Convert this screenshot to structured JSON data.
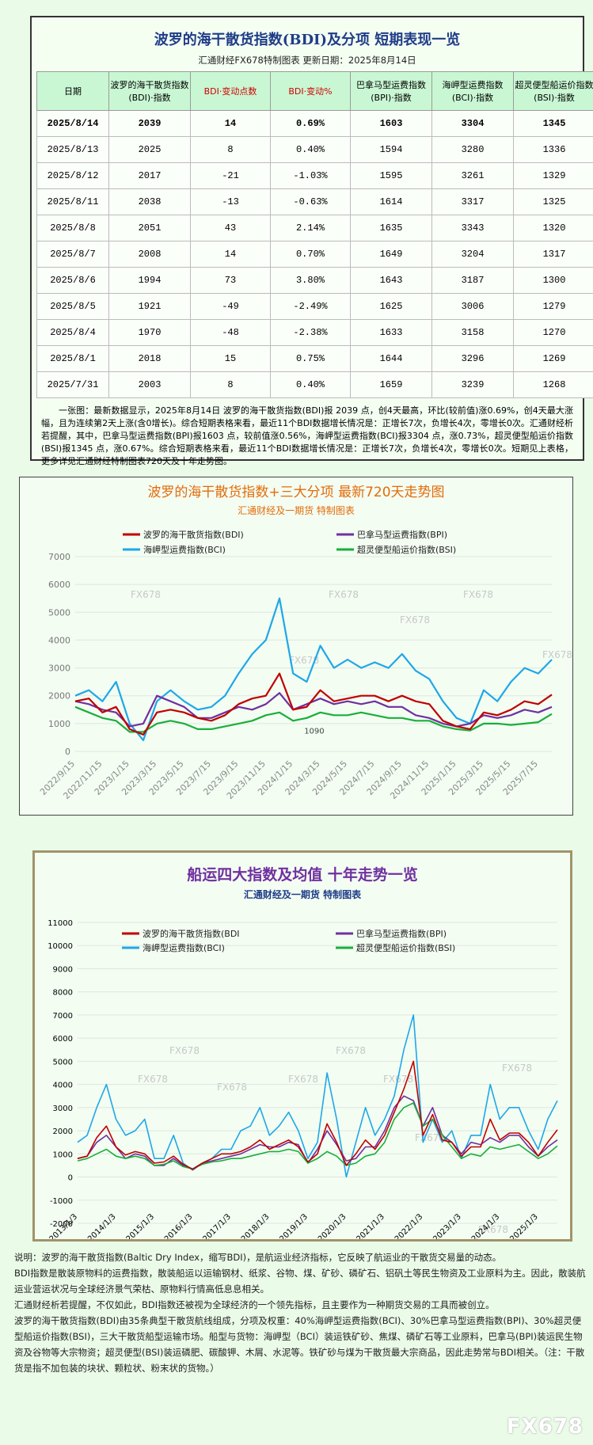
{
  "header": {
    "title": "波罗的海干散货指数(BDI)及分项  短期表现一览",
    "subtitle": "汇通财经FX678特制图表      更新日期：2025年8月14日"
  },
  "table": {
    "columns": [
      "日期",
      "波罗的海干散货指数(BDI)·指数",
      "BDI·变动点数",
      "BDI·变动%",
      "巴拿马型运费指数(BPI)·指数",
      "海岬型运费指数(BCI)·指数",
      "超灵便型船运价指数(BSI)·指数"
    ],
    "rows": [
      [
        "2025/8/14",
        2039,
        14,
        "0.69%",
        1603,
        3304,
        1345
      ],
      [
        "2025/8/13",
        2025,
        8,
        "0.40%",
        1594,
        3280,
        1336
      ],
      [
        "2025/8/12",
        2017,
        -21,
        "-1.03%",
        1595,
        3261,
        1329
      ],
      [
        "2025/8/11",
        2038,
        -13,
        "-0.63%",
        1614,
        3317,
        1325
      ],
      [
        "2025/8/8",
        2051,
        43,
        "2.14%",
        1635,
        3343,
        1320
      ],
      [
        "2025/8/7",
        2008,
        14,
        "0.70%",
        1649,
        3204,
        1317
      ],
      [
        "2025/8/6",
        1994,
        73,
        "3.80%",
        1643,
        3187,
        1300
      ],
      [
        "2025/8/5",
        1921,
        -49,
        "-2.49%",
        1625,
        3006,
        1279
      ],
      [
        "2025/8/4",
        1970,
        -48,
        "-2.38%",
        1633,
        3158,
        1270
      ],
      [
        "2025/8/1",
        2018,
        15,
        "0.75%",
        1644,
        3296,
        1269
      ],
      [
        "2025/7/31",
        2003,
        8,
        "0.40%",
        1659,
        3239,
        1268
      ]
    ]
  },
  "summary": "一张图：最新数据显示，2025年8月14日 波罗的海干散货指数(BDI)报 2039 点，创4天最高，环比(较前值)涨0.69%，创4天最大涨幅，且为连续第2天上涨(含0增长)。综合短期表格来看，最近11个BDI数据增长情况是：正增长7次，负增长4次，零增长0次。汇通财经析若提醒，其中，巴拿马型运费指数(BPI)报1603 点，较前值涨0.56%，海岬型运费指数(BCI)报3304 点，涨0.73%，超灵便型船运价指数(BSI)报1345 点，涨0.67%。综合短期表格来看，最近11个BDI数据增长情况是：正增长7次，负增长4次，零增长0次。短期见上表格，更多详见汇通财经特制图表720天及十年走势图。",
  "chart_data": [
    {
      "type": "line",
      "title": "波罗的海干散货指数+三大分项  最新720天走势图",
      "subtitle": "汇通财经及一期货  特制图表",
      "watermark": "FX678",
      "annotation": "1090",
      "grid": true,
      "ylim": [
        0,
        7000
      ],
      "yticks": [
        0,
        1000,
        2000,
        3000,
        4000,
        5000,
        6000,
        7000
      ],
      "categories": [
        "2022/9/15",
        null,
        "2022/11/15",
        null,
        "2023/1/15",
        null,
        "2023/3/15",
        null,
        "2023/5/15",
        null,
        "2023/7/15",
        null,
        "2023/9/15",
        null,
        "2023/11/15",
        null,
        "2024/1/15",
        null,
        "2024/3/15",
        null,
        "2024/5/15",
        null,
        "2024/7/15",
        null,
        "2024/9/15",
        null,
        "2024/11/15",
        null,
        "2025/1/15",
        null,
        "2025/3/15",
        null,
        "2025/5/15",
        null,
        "2025/7/15",
        null
      ],
      "series": [
        {
          "name": "波罗的海干散货指数(BDI)",
          "color": "#c00000",
          "values": [
            1800,
            1900,
            1400,
            1600,
            800,
            600,
            1400,
            1500,
            1400,
            1200,
            1100,
            1300,
            1700,
            1900,
            2000,
            2800,
            1500,
            1600,
            2200,
            1800,
            1900,
            2000,
            2000,
            1800,
            2000,
            1800,
            1700,
            1100,
            900,
            800,
            1400,
            1300,
            1500,
            1800,
            1700,
            2040
          ]
        },
        {
          "name": "巴拿马型运费指数(BPI)",
          "color": "#7030a0",
          "values": [
            1800,
            1700,
            1500,
            1400,
            900,
            1000,
            2000,
            1800,
            1600,
            1200,
            1200,
            1400,
            1600,
            1500,
            1700,
            2100,
            1500,
            1700,
            1900,
            1700,
            1800,
            1700,
            1800,
            1600,
            1600,
            1300,
            1200,
            1000,
            900,
            1000,
            1300,
            1200,
            1300,
            1500,
            1400,
            1600
          ]
        },
        {
          "name": "海岬型运费指数(BCI)",
          "color": "#1ea7e8",
          "values": [
            2000,
            2200,
            1800,
            2500,
            1000,
            400,
            1800,
            2200,
            1800,
            1500,
            1600,
            2000,
            2800,
            3500,
            4000,
            5500,
            2800,
            2500,
            3800,
            3000,
            3300,
            3000,
            3200,
            3000,
            3500,
            2900,
            2600,
            1800,
            1200,
            1000,
            2200,
            1800,
            2500,
            3000,
            2800,
            3300
          ]
        },
        {
          "name": "超灵便型船运价指数(BSI)",
          "color": "#1aae3c",
          "values": [
            1600,
            1400,
            1200,
            1100,
            700,
            700,
            1000,
            1100,
            1000,
            800,
            800,
            900,
            1000,
            1100,
            1300,
            1400,
            1100,
            1200,
            1400,
            1300,
            1300,
            1400,
            1300,
            1200,
            1200,
            1100,
            1100,
            900,
            800,
            750,
            1000,
            1000,
            950,
            1000,
            1050,
            1345
          ]
        }
      ]
    },
    {
      "type": "line",
      "title": "船运四大指数及均值 十年走势一览",
      "subtitle": "汇通财经及一期货 特制图表",
      "watermark": "FX678",
      "grid": true,
      "ylim": [
        -2000,
        11000
      ],
      "yticks": [
        -2000,
        -1000,
        0,
        1000,
        2000,
        3000,
        4000,
        5000,
        6000,
        7000,
        8000,
        9000,
        10000,
        11000
      ],
      "categories": [
        "2013/1/3",
        null,
        null,
        null,
        "2014/1/3",
        null,
        null,
        null,
        "2015/1/3",
        null,
        null,
        null,
        "2016/1/3",
        null,
        null,
        null,
        "2017/1/3",
        null,
        null,
        null,
        "2018/1/3",
        null,
        null,
        null,
        "2019/1/3",
        null,
        null,
        null,
        "2020/1/3",
        null,
        null,
        null,
        "2021/1/3",
        null,
        null,
        null,
        "2022/1/3",
        null,
        null,
        null,
        "2023/1/3",
        null,
        null,
        null,
        "2024/1/3",
        null,
        null,
        null,
        "2025/1/3",
        null,
        null
      ],
      "series": [
        {
          "name": "波罗的海干散货指数(BDI",
          "color": "#c00000",
          "values": [
            800,
            900,
            1700,
            2200,
            1300,
            950,
            1100,
            1000,
            600,
            650,
            900,
            550,
            330,
            600,
            800,
            1000,
            1000,
            1100,
            1300,
            1600,
            1200,
            1400,
            1600,
            1300,
            650,
            1000,
            2300,
            1500,
            500,
            1000,
            1600,
            1200,
            1800,
            2800,
            3800,
            5000,
            1800,
            2700,
            1600,
            1500,
            900,
            1300,
            1300,
            2500,
            1600,
            1900,
            1900,
            1500,
            900,
            1500,
            2040
          ]
        },
        {
          "name": "巴拿马型运费指数(BPI)",
          "color": "#7030a0",
          "values": [
            800,
            900,
            1500,
            1800,
            1300,
            800,
            1000,
            900,
            500,
            500,
            800,
            500,
            350,
            600,
            700,
            800,
            900,
            1000,
            1200,
            1400,
            1300,
            1300,
            1500,
            1400,
            600,
            1200,
            2000,
            1400,
            700,
            800,
            1300,
            1300,
            2000,
            3000,
            3500,
            3300,
            2200,
            3000,
            1800,
            1500,
            1000,
            1500,
            1400,
            1700,
            1500,
            1800,
            1800,
            1300,
            900,
            1300,
            1603
          ]
        },
        {
          "name": "海岬型运费指数(BCI)",
          "color": "#1ea7e8",
          "values": [
            1500,
            1800,
            3000,
            4000,
            2500,
            1800,
            2000,
            2500,
            800,
            800,
            1800,
            600,
            300,
            600,
            800,
            1200,
            1200,
            2000,
            2200,
            3000,
            1800,
            2200,
            2800,
            2000,
            800,
            1500,
            4500,
            2500,
            0,
            1500,
            3000,
            1800,
            2500,
            3500,
            5500,
            7000,
            1500,
            2500,
            1500,
            2000,
            800,
            1800,
            1800,
            4000,
            2500,
            3000,
            3000,
            2000,
            1200,
            2500,
            3300
          ]
        },
        {
          "name": "超灵便型船运价指数(BSI)",
          "color": "#1aae3c",
          "values": [
            700,
            800,
            1000,
            1200,
            900,
            800,
            900,
            800,
            500,
            550,
            700,
            450,
            350,
            550,
            650,
            700,
            800,
            800,
            900,
            1000,
            1100,
            1100,
            1200,
            1100,
            600,
            800,
            1100,
            900,
            500,
            600,
            900,
            1000,
            1500,
            2500,
            3000,
            3200,
            2200,
            2500,
            1800,
            1300,
            800,
            1000,
            900,
            1300,
            1200,
            1300,
            1400,
            1100,
            800,
            1000,
            1345
          ]
        }
      ]
    }
  ],
  "notes": [
    "说明：波罗的海干散货指数(Baltic Dry Index，缩写BDI)，是航运业经济指标，它反映了航运业的干散货交易量的动态。",
    "BDI指数是散装原物料的运费指数，散装船运以运输钢材、纸浆、谷物、煤、矿砂、磷矿石、铝矾土等民生物资及工业原料为主。因此，散装航运业营运状况与全球经济景气荣枯、原物料行情高低息息相关。",
    "汇通财经析若提醒，不仅如此，BDI指数还被视为全球经济的一个领先指标，且主要作为一种期货交易的工具而被创立。",
    "波罗的海干散货指数(BDI)由35条典型干散货航线组成，分项及权重：40%海岬型运费指数(BCI)、30%巴拿马型运费指数(BPI)、30%超灵便型船运价指数(BSI)，三大干散货船型运输市场。船型与货物：海岬型（BCI）装运铁矿砂、焦煤、磷矿石等工业原料，巴拿马(BPI)装运民生物资及谷物等大宗物资；超灵便型(BSI)装运磷肥、碳酸钾、木屑、水泥等。铁矿砂与煤为干散货最大宗商品，因此走势常与BDI相关。（注：干散货是指不加包装的块状、颗粒状、粉末状的货物。）"
  ],
  "logo": "FX678"
}
